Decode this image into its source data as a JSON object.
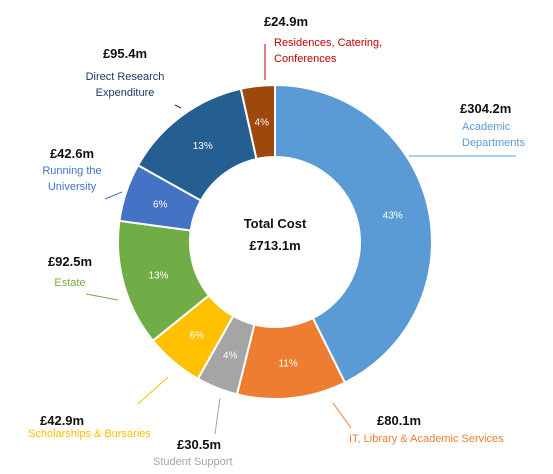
{
  "chart_data": {
    "type": "pie",
    "center_label": "Total Cost",
    "center_value": "£713.1m",
    "slices": [
      {
        "category": "Academic Departments",
        "value": 304.2,
        "value_label": "£304.2m",
        "percent_label": "43%",
        "color": "#5B9BD5",
        "label_color": "#5B9BD5"
      },
      {
        "category": "IT, Library & Academic Services",
        "value": 80.1,
        "value_label": "£80.1m",
        "percent_label": "11%",
        "color": "#ED7D31",
        "label_color": "#ED7D31"
      },
      {
        "category": "Student Support",
        "value": 30.5,
        "value_label": "£30.5m",
        "percent_label": "4%",
        "color": "#A5A5A5",
        "label_color": "#A5A5A5"
      },
      {
        "category": "Scholarships & Bursaries",
        "value": 42.9,
        "value_label": "£42.9m",
        "percent_label": "6%",
        "color": "#FFC000",
        "label_color": "#FFC000"
      },
      {
        "category": "Estate",
        "value": 92.5,
        "value_label": "£92.5m",
        "percent_label": "13%",
        "color": "#70AD47",
        "label_color": "#70AD47"
      },
      {
        "category": "Running the University",
        "value": 42.6,
        "value_label": "£42.6m",
        "percent_label": "6%",
        "color": "#4472C4",
        "label_color": "#4472C4"
      },
      {
        "category": "Direct Research Expenditure",
        "value": 95.4,
        "value_label": "£95.4m",
        "percent_label": "13%",
        "color": "#255E91",
        "label_color": "#1F3864"
      },
      {
        "category": "Residences, Catering, Conferences",
        "value": 24.9,
        "value_label": "£24.9m",
        "percent_label": "4%",
        "color": "#9E480E",
        "label_color": "#C00000"
      }
    ]
  }
}
